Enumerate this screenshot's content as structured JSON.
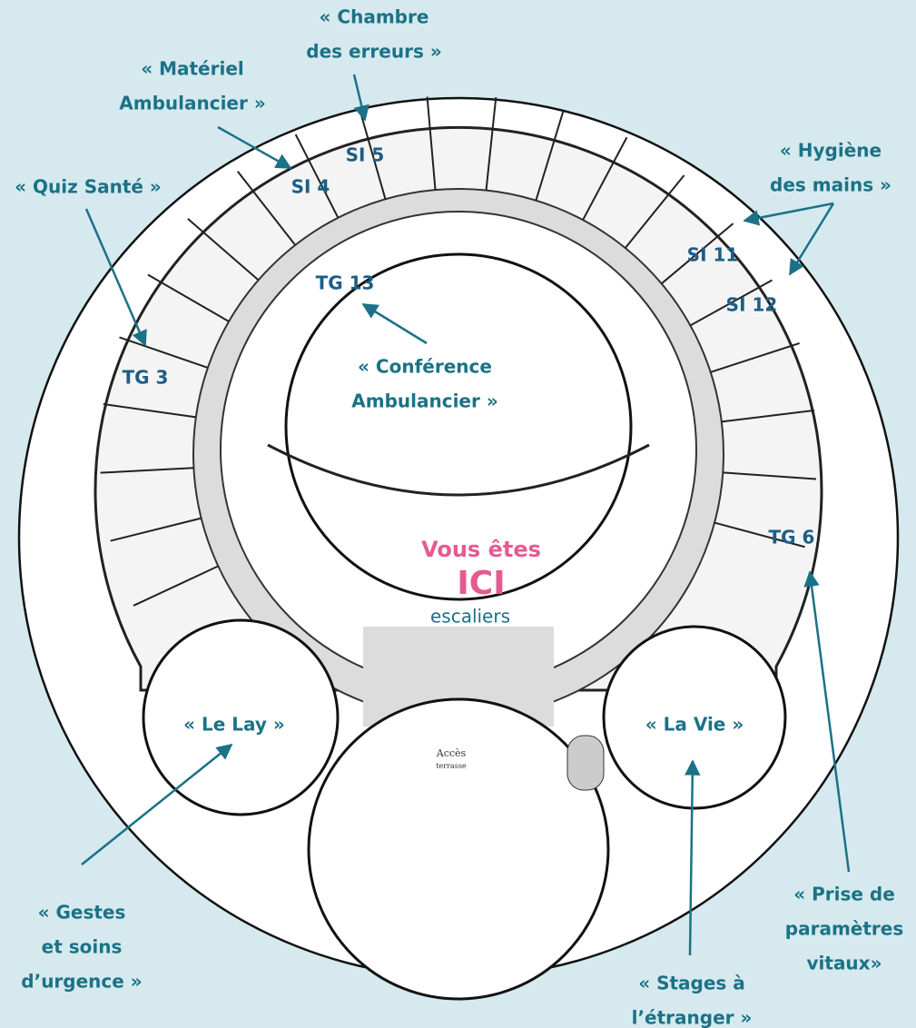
{
  "callouts": [
    {
      "lines": [
        "« Chambre",
        "des erreurs »"
      ]
    },
    {
      "lines": [
        "« Matériel",
        "Ambulancier »"
      ]
    },
    {
      "lines": [
        "« Quiz Santé »"
      ]
    },
    {
      "lines": [
        "« Hygiène",
        "des mains »"
      ]
    },
    {
      "lines": [
        "« Conférence",
        "Ambulancier »"
      ]
    },
    {
      "lines": [
        "« Le Lay »"
      ]
    },
    {
      "lines": [
        "« La Vie »"
      ]
    },
    {
      "lines": [
        "« Gestes",
        "et soins",
        "d’urgence »"
      ]
    },
    {
      "lines": [
        "« Stages à",
        "l’étranger »"
      ]
    },
    {
      "lines": [
        "« Prise de",
        "paramètres",
        "vitaux»"
      ]
    }
  ],
  "rooms": [
    "SI 5",
    "SI 4",
    "TG 13",
    "SI 11",
    "SI 12",
    "TG 3",
    "TG 6"
  ],
  "here": {
    "title": "Vous êtes",
    "marker": "ICI",
    "place": "escaliers"
  },
  "plan_text": [
    "Accès",
    "terrasse"
  ]
}
